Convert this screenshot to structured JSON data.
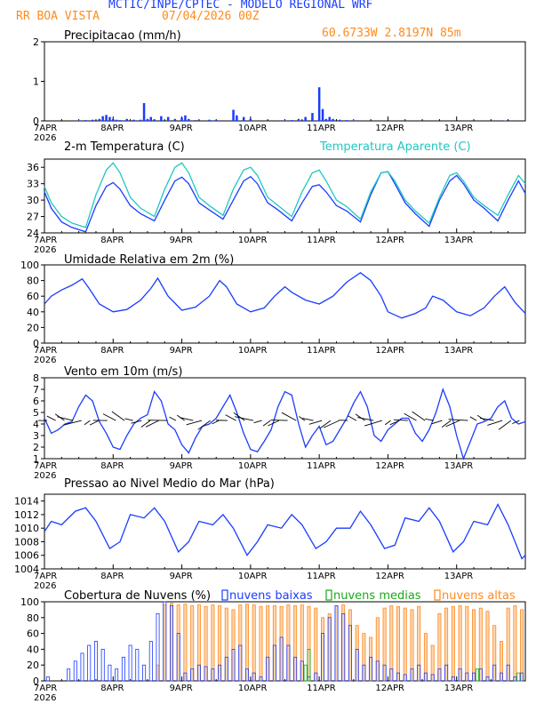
{
  "header": {
    "line1": "MCTIC/INPE/CPTEC - MODELO REGIONAL WRF",
    "station": "RR BOA VISTA",
    "run": "07/04/2026 00Z",
    "coords": "60.6733W  2.8197N  85m"
  },
  "colors": {
    "blue": "#1a3cff",
    "orange": "#ff8a1c",
    "green": "#1aa81a",
    "cyan": "#20c8c0",
    "black": "#000000"
  },
  "x_axis": {
    "ticks": [
      "7APR",
      "8APR",
      "9APR",
      "10APR",
      "11APR",
      "12APR",
      "13APR"
    ],
    "year": "2026"
  },
  "chart_data": [
    {
      "id": "precip",
      "type": "bar",
      "title": "Precipitacao (mm/h)",
      "ylim": [
        0,
        2
      ],
      "yticks": [
        0,
        1,
        2
      ],
      "series": [
        {
          "name": "precip",
          "color": "#1a3cff",
          "x": [
            0.5,
            0.6,
            0.7,
            0.8,
            0.85,
            0.9,
            0.95,
            1.0,
            1.05,
            1.1,
            1.2,
            1.3,
            1.4,
            1.45,
            1.5,
            1.55,
            1.6,
            1.7,
            1.8,
            1.9,
            2.0,
            2.05,
            2.1,
            2.2,
            2.4,
            2.5,
            2.75,
            2.8,
            2.9,
            3.0,
            3.5,
            3.6,
            3.7,
            3.8,
            3.9,
            4.0,
            4.05,
            4.1,
            4.15,
            4.2,
            4.3,
            4.4,
            4.5,
            6.7
          ],
          "values": [
            0.01,
            0.02,
            0.03,
            0.05,
            0.12,
            0.15,
            0.1,
            0.05,
            0.03,
            0.02,
            0.05,
            0.03,
            0.03,
            0.45,
            0.05,
            0.1,
            0.04,
            0.12,
            0.1,
            0.05,
            0.08,
            0.14,
            0.05,
            0.02,
            0.03,
            0.02,
            0.28,
            0.14,
            0.1,
            0.05,
            0.01,
            0.02,
            0.05,
            0.1,
            0.2,
            0.85,
            0.3,
            0.05,
            0.1,
            0.05,
            0.03,
            0.02,
            0.01,
            0.01
          ]
        }
      ]
    },
    {
      "id": "temp",
      "type": "line",
      "title": "2-m Temperatura (C)",
      "legend": "Temperatura Aparente (C)",
      "ylim": [
        24,
        37.5
      ],
      "yticks": [
        24,
        27,
        30,
        33,
        36
      ],
      "series": [
        {
          "name": "Temperatura (C)",
          "color": "#1a3cff",
          "x": [
            0,
            0.1,
            0.25,
            0.4,
            0.6,
            0.75,
            0.9,
            1.0,
            1.1,
            1.25,
            1.4,
            1.6,
            1.75,
            1.9,
            2.0,
            2.1,
            2.25,
            2.4,
            2.6,
            2.75,
            2.9,
            3.0,
            3.1,
            3.25,
            3.4,
            3.6,
            3.75,
            3.9,
            4.0,
            4.1,
            4.25,
            4.4,
            4.6,
            4.75,
            4.9,
            5.0,
            5.1,
            5.25,
            5.4,
            5.6,
            5.75,
            5.9,
            6.0,
            6.1,
            6.25,
            6.4,
            6.6,
            6.75,
            6.9,
            7.0
          ],
          "values": [
            31.5,
            28.5,
            26,
            25,
            24.2,
            29,
            32.5,
            33.2,
            32,
            29,
            27.5,
            26.2,
            30,
            33.5,
            34.2,
            33,
            29.5,
            28.2,
            26.5,
            30,
            33.5,
            34.3,
            33,
            29.5,
            28.2,
            26.2,
            29.5,
            32.5,
            32.8,
            31.5,
            29,
            28,
            26,
            31,
            35,
            35.2,
            33,
            29.5,
            27.5,
            25.2,
            30,
            33.5,
            34.5,
            33,
            30,
            28.5,
            26.2,
            30,
            33.5,
            31.2
          ]
        },
        {
          "name": "Temperatura Aparente (C)",
          "color": "#20c8c0",
          "x": [
            0,
            0.1,
            0.25,
            0.4,
            0.6,
            0.75,
            0.9,
            1.0,
            1.1,
            1.25,
            1.4,
            1.6,
            1.75,
            1.9,
            2.0,
            2.1,
            2.25,
            2.4,
            2.6,
            2.75,
            2.9,
            3.0,
            3.1,
            3.25,
            3.4,
            3.6,
            3.75,
            3.9,
            4.0,
            4.1,
            4.25,
            4.4,
            4.6,
            4.75,
            4.9,
            5.0,
            5.1,
            5.25,
            5.4,
            5.6,
            5.75,
            5.9,
            6.0,
            6.1,
            6.25,
            6.4,
            6.6,
            6.75,
            6.9,
            7.0
          ],
          "values": [
            32.5,
            29.5,
            27,
            25.8,
            25,
            31,
            35.5,
            36.8,
            35,
            30.5,
            28.5,
            27,
            32,
            36,
            36.8,
            35,
            30.5,
            29,
            27.2,
            32,
            35.5,
            36,
            34.5,
            30.5,
            29,
            27,
            31.5,
            35,
            35.5,
            33.5,
            30,
            28.8,
            26.5,
            31.5,
            35,
            35.2,
            33.5,
            30,
            28,
            25.8,
            30.5,
            34.5,
            35,
            33.5,
            30.5,
            29,
            27.2,
            31,
            34.5,
            33
          ]
        }
      ]
    },
    {
      "id": "rh",
      "type": "line",
      "title": "Umidade Relativa em 2m (%)",
      "ylim": [
        0,
        100
      ],
      "yticks": [
        0,
        20,
        40,
        60,
        80,
        100
      ],
      "series": [
        {
          "name": "Umidade Relativa",
          "color": "#1a3cff",
          "x": [
            0,
            0.1,
            0.25,
            0.4,
            0.55,
            0.65,
            0.8,
            1.0,
            1.2,
            1.4,
            1.55,
            1.65,
            1.8,
            2.0,
            2.2,
            2.4,
            2.55,
            2.65,
            2.8,
            3.0,
            3.2,
            3.35,
            3.5,
            3.6,
            3.8,
            4.0,
            4.2,
            4.4,
            4.6,
            4.75,
            4.9,
            5.0,
            5.2,
            5.4,
            5.55,
            5.65,
            5.8,
            6.0,
            6.2,
            6.4,
            6.55,
            6.7,
            6.85,
            7.0
          ],
          "values": [
            50,
            60,
            68,
            74,
            82,
            70,
            50,
            40,
            43,
            55,
            70,
            83,
            60,
            42,
            46,
            60,
            80,
            72,
            50,
            40,
            45,
            60,
            72,
            65,
            55,
            50,
            60,
            78,
            90,
            80,
            60,
            40,
            32,
            38,
            45,
            60,
            55,
            40,
            35,
            45,
            60,
            72,
            52,
            38
          ]
        }
      ]
    },
    {
      "id": "wind",
      "type": "line",
      "title": "Vento em 10m (m/s)",
      "ylim": [
        1,
        8
      ],
      "yticks": [
        1,
        2,
        3,
        4,
        5,
        6,
        7,
        8
      ],
      "series": [
        {
          "name": "Vento",
          "color": "#1a3cff",
          "x": [
            0,
            0.1,
            0.2,
            0.3,
            0.4,
            0.5,
            0.6,
            0.7,
            0.8,
            0.9,
            1.0,
            1.1,
            1.2,
            1.3,
            1.4,
            1.5,
            1.6,
            1.7,
            1.8,
            1.9,
            2.0,
            2.1,
            2.2,
            2.3,
            2.4,
            2.5,
            2.6,
            2.7,
            2.8,
            2.9,
            3.0,
            3.1,
            3.2,
            3.3,
            3.4,
            3.5,
            3.6,
            3.7,
            3.8,
            3.9,
            4.0,
            4.1,
            4.2,
            4.3,
            4.4,
            4.5,
            4.6,
            4.7,
            4.8,
            4.9,
            5.0,
            5.1,
            5.2,
            5.3,
            5.4,
            5.5,
            5.6,
            5.7,
            5.8,
            5.9,
            6.0,
            6.1,
            6.2,
            6.3,
            6.4,
            6.5,
            6.6,
            6.7,
            6.8,
            6.9,
            7.0
          ],
          "values": [
            4.5,
            3.2,
            3.5,
            4.0,
            4.2,
            5.5,
            6.5,
            6.0,
            4.2,
            3.2,
            2.0,
            1.8,
            3.0,
            4.0,
            4.5,
            4.8,
            6.8,
            6.0,
            4.0,
            3.5,
            2.2,
            1.5,
            2.8,
            3.8,
            4.0,
            4.5,
            5.5,
            6.5,
            5.0,
            3.2,
            1.8,
            1.6,
            2.5,
            3.5,
            5.5,
            6.8,
            6.5,
            4.0,
            2.0,
            3.0,
            3.8,
            2.2,
            2.5,
            3.5,
            4.5,
            5.8,
            6.8,
            5.5,
            3.0,
            2.5,
            3.5,
            4.0,
            4.5,
            4.5,
            3.2,
            2.5,
            3.5,
            5.0,
            7.0,
            5.5,
            3.0,
            1.0,
            2.5,
            4.0,
            4.2,
            4.5,
            5.5,
            6.0,
            4.5,
            4.0,
            4.2
          ]
        }
      ]
    },
    {
      "id": "pressure",
      "type": "line",
      "title": "Pressao ao Nivel Medio do Mar (hPa)",
      "ylim": [
        1004,
        1015
      ],
      "yticks": [
        1004,
        1006,
        1008,
        1010,
        1012,
        1014
      ],
      "series": [
        {
          "name": "Pressao",
          "color": "#1a3cff",
          "x": [
            0,
            0.1,
            0.25,
            0.45,
            0.6,
            0.75,
            0.95,
            1.1,
            1.25,
            1.45,
            1.6,
            1.75,
            1.95,
            2.1,
            2.25,
            2.45,
            2.6,
            2.75,
            2.95,
            3.1,
            3.25,
            3.45,
            3.6,
            3.75,
            3.95,
            4.1,
            4.25,
            4.45,
            4.6,
            4.75,
            4.95,
            5.1,
            5.25,
            5.45,
            5.6,
            5.75,
            5.95,
            6.1,
            6.25,
            6.45,
            6.6,
            6.75,
            6.95,
            7.0
          ],
          "values": [
            1009.5,
            1011,
            1010.5,
            1012.5,
            1013,
            1011,
            1007,
            1008,
            1012,
            1011.5,
            1013,
            1011,
            1006.5,
            1008,
            1011,
            1010.5,
            1012,
            1010,
            1006,
            1008,
            1010.5,
            1010,
            1012,
            1010.5,
            1007,
            1008,
            1010,
            1010,
            1012.5,
            1010.5,
            1007,
            1007.5,
            1011.5,
            1011,
            1013,
            1011,
            1006.5,
            1008,
            1011,
            1010.5,
            1013.5,
            1010.5,
            1005.5,
            1006
          ]
        }
      ]
    },
    {
      "id": "clouds",
      "type": "bar",
      "title": "Cobertura de Nuvens (%)",
      "legend": [
        "nuvens baixas",
        "nuvens medias",
        "nuvens altas"
      ],
      "ylim": [
        0,
        100
      ],
      "yticks": [
        0,
        20,
        40,
        60,
        80,
        100
      ],
      "series": [
        {
          "name": "nuvens altas",
          "color": "#ff8a1c",
          "x": [
            1.65,
            1.75,
            1.85,
            1.95,
            2.05,
            2.15,
            2.25,
            2.35,
            2.45,
            2.55,
            2.65,
            2.75,
            2.85,
            2.95,
            3.05,
            3.15,
            3.25,
            3.35,
            3.45,
            3.55,
            3.65,
            3.75,
            3.85,
            3.95,
            4.05,
            4.15,
            4.25,
            4.35,
            4.45,
            4.55,
            4.65,
            4.75,
            4.85,
            4.95,
            5.05,
            5.15,
            5.25,
            5.35,
            5.45,
            5.55,
            5.65,
            5.75,
            5.85,
            5.95,
            6.05,
            6.15,
            6.25,
            6.35,
            6.45,
            6.55,
            6.65,
            6.75,
            6.85,
            6.95
          ],
          "values": [
            20,
            96,
            98,
            96,
            97,
            95,
            96,
            94,
            96,
            95,
            92,
            90,
            96,
            97,
            96,
            94,
            95,
            95,
            94,
            96,
            95,
            96,
            94,
            92,
            80,
            85,
            95,
            96,
            90,
            70,
            60,
            55,
            80,
            92,
            95,
            94,
            92,
            90,
            94,
            60,
            45,
            85,
            92,
            94,
            95,
            94,
            90,
            92,
            88,
            70,
            50,
            92,
            95,
            90
          ]
        },
        {
          "name": "nuvens baixas",
          "color": "#1a3cff",
          "x": [
            0.05,
            0.35,
            0.45,
            0.55,
            0.65,
            0.75,
            0.85,
            0.95,
            1.05,
            1.15,
            1.25,
            1.35,
            1.45,
            1.55,
            1.65,
            1.75,
            1.85,
            1.95,
            2.05,
            2.15,
            2.25,
            2.35,
            2.45,
            2.55,
            2.65,
            2.75,
            2.85,
            2.95,
            3.05,
            3.15,
            3.25,
            3.35,
            3.45,
            3.55,
            3.65,
            3.75,
            3.85,
            3.95,
            4.05,
            4.15,
            4.25,
            4.35,
            4.45,
            4.55,
            4.65,
            4.75,
            4.85,
            4.95,
            5.05,
            5.15,
            5.25,
            5.35,
            5.45,
            5.55,
            5.65,
            5.75,
            5.85,
            5.95,
            6.05,
            6.15,
            6.25,
            6.35,
            6.45,
            6.55,
            6.65,
            6.75,
            6.85,
            6.95
          ],
          "values": [
            5,
            15,
            25,
            35,
            45,
            50,
            40,
            20,
            15,
            30,
            45,
            40,
            20,
            50,
            85,
            100,
            95,
            60,
            10,
            15,
            20,
            18,
            15,
            20,
            30,
            40,
            45,
            15,
            10,
            5,
            30,
            45,
            55,
            45,
            30,
            25,
            5,
            10,
            60,
            80,
            95,
            85,
            70,
            40,
            20,
            30,
            25,
            20,
            15,
            10,
            8,
            15,
            20,
            10,
            8,
            15,
            20,
            5,
            15,
            10,
            10,
            15,
            5,
            20,
            10,
            20,
            5,
            10
          ]
        },
        {
          "name": "nuvens medias",
          "color": "#1aa81a",
          "x": [
            3.8,
            3.85,
            6.3,
            6.9
          ],
          "values": [
            20,
            40,
            15,
            10
          ]
        }
      ]
    }
  ]
}
